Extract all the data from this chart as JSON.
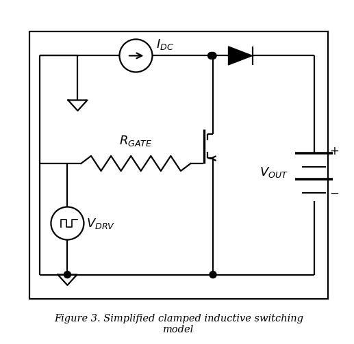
{
  "title": "Figure 3. Simplified clamped inductive switching\nmodel",
  "bg_color": "#ffffff",
  "line_color": "#000000",
  "line_width": 1.6,
  "caption_fontsize": 10.5
}
